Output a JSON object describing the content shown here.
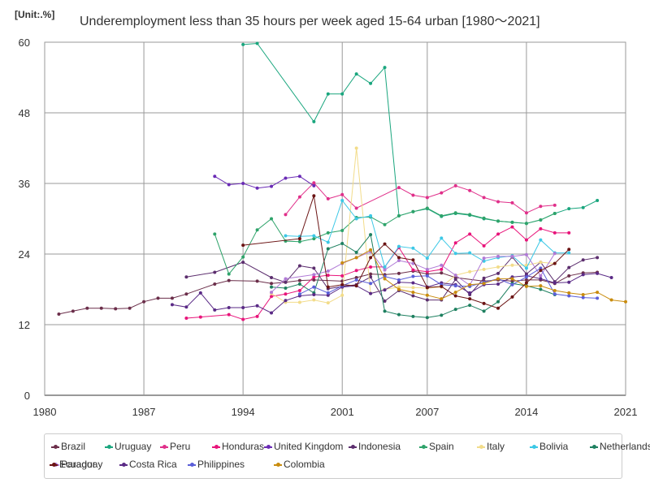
{
  "unit_label": "[Unit:.%]",
  "title": "Underemployment less than 35 hours per week aged 15-64 urban [1980～2021]",
  "chart_data": {
    "type": "line",
    "title": "Underemployment less than 35 hours per week aged 15-64 urban [1980～2021]",
    "xlabel": "",
    "ylabel": "",
    "xlim": [
      1980,
      2021
    ],
    "ylim": [
      0,
      60
    ],
    "xticks": [
      1980,
      1987,
      1994,
      2001,
      2007,
      2014,
      2021
    ],
    "yticks": [
      0,
      12,
      24,
      36,
      48,
      60
    ],
    "grid": true,
    "legend_position": "bottom",
    "series": [
      {
        "name": "Brazil",
        "color": "#6b2e4a",
        "x": [
          1981,
          1982,
          1983,
          1984,
          1985,
          1986,
          1987,
          1988,
          1989,
          1990,
          1992,
          1993,
          1995,
          1996,
          1997,
          1998,
          1999,
          2001,
          2002,
          2003,
          2004,
          2005,
          2006,
          2007,
          2008,
          2009,
          2011,
          2012,
          2013,
          2014,
          2015,
          2016,
          2017,
          2018,
          2019
        ],
        "y": [
          13.8,
          14.3,
          14.8,
          14.8,
          14.7,
          14.8,
          15.9,
          16.5,
          16.5,
          17.2,
          18.9,
          19.5,
          19.4,
          19.0,
          19.2,
          19.5,
          19.6,
          19.4,
          20.0,
          20.6,
          20.5,
          20.7,
          21.1,
          20.6,
          20.8,
          20.0,
          19.4,
          19.6,
          19.4,
          19.6,
          19.6,
          19.0,
          20.3,
          20.8,
          20.9
        ]
      },
      {
        "name": "Uruguay",
        "color": "#1aa67e",
        "x": [
          1994,
          1995,
          1999,
          2000,
          2001,
          2002,
          2003,
          2004,
          2005,
          2006,
          2007,
          2008,
          2009,
          2010,
          2011,
          2012,
          2013,
          2014,
          2015,
          2016,
          2017,
          2018,
          2019
        ],
        "y": [
          59.6,
          59.8,
          46.5,
          51.2,
          51.2,
          54.6,
          53.0,
          55.7,
          30.5,
          31.2,
          31.7,
          30.4,
          30.9,
          30.6,
          30.0,
          29.6,
          29.4,
          29.2,
          29.8,
          30.9,
          31.7,
          31.9,
          33.1
        ]
      },
      {
        "name": "Peru",
        "color": "#e02f8a",
        "x": [
          1997,
          1998,
          1999,
          2000,
          2001,
          2002,
          2005,
          2006,
          2007,
          2008,
          2009,
          2010,
          2011,
          2012,
          2013,
          2014,
          2015,
          2016
        ],
        "y": [
          30.7,
          33.7,
          36.1,
          33.4,
          34.1,
          31.8,
          35.3,
          34.0,
          33.6,
          34.4,
          35.6,
          34.8,
          33.6,
          32.9,
          32.7,
          31.0,
          32.1,
          32.3
        ]
      },
      {
        "name": "Honduras",
        "color": "#e8147a",
        "x": [
          1990,
          1991,
          1993,
          1994,
          1995,
          1996,
          1997,
          1998,
          1999,
          2000,
          2001,
          2002,
          2003,
          2004,
          2005,
          2006,
          2007,
          2008,
          2009,
          2010,
          2011,
          2012,
          2013,
          2014,
          2015,
          2016,
          2017
        ],
        "y": [
          13.1,
          13.3,
          13.7,
          12.9,
          13.4,
          16.8,
          17.2,
          17.8,
          20.1,
          20.4,
          20.3,
          21.2,
          21.8,
          21.8,
          25.1,
          21.3,
          21.0,
          21.4,
          25.9,
          27.4,
          25.4,
          27.4,
          28.6,
          26.4,
          28.3,
          27.6,
          27.6
        ]
      },
      {
        "name": "United Kingdom",
        "color": "#6a2bb5",
        "x": [
          1992,
          1993,
          1994,
          1995,
          1996,
          1997,
          1998,
          1999
        ],
        "y": [
          37.2,
          35.8,
          36.0,
          35.2,
          35.5,
          36.9,
          37.2,
          35.6
        ]
      },
      {
        "name": "Indonesia",
        "color": "#5c2e6e",
        "x": [
          1990,
          1992,
          1994,
          1996,
          1997,
          1998,
          1999,
          2000,
          2001,
          2002,
          2003,
          2004,
          2005,
          2006,
          2007,
          2008,
          2009,
          2010,
          2011,
          2012,
          2013,
          2014,
          2015,
          2016,
          2017,
          2018,
          2019
        ],
        "y": [
          20.1,
          20.9,
          22.6,
          20.0,
          19.2,
          22.0,
          21.6,
          18.1,
          18.5,
          18.8,
          20.1,
          16.0,
          17.8,
          16.9,
          16.2,
          16.2,
          19.7,
          17.1,
          19.9,
          20.7,
          23.5,
          20.6,
          22.6,
          19.3,
          21.7,
          23.0,
          23.4
        ]
      },
      {
        "name": "Spain",
        "color": "#2ea36a",
        "x": [
          1992,
          1993,
          1994,
          1995,
          1996,
          1997,
          1998,
          1999,
          2000,
          2001,
          2002,
          2003,
          2004,
          2005,
          2006,
          2007,
          2008,
          2009,
          2010,
          2011,
          2012,
          2013,
          2014,
          2015,
          2016
        ],
        "y": [
          27.4,
          20.6,
          23.5,
          28.1,
          30.0,
          26.2,
          26.1,
          26.6,
          27.6,
          28.0,
          30.2,
          30.3,
          29.0,
          30.5,
          31.2,
          31.8,
          30.5,
          31.0,
          30.7,
          30.1,
          29.6,
          29.4,
          29.2,
          29.8,
          30.9
        ]
      },
      {
        "name": "Italy",
        "color": "#f2dc8a",
        "x": [
          1996,
          1997,
          1998,
          1999,
          2000,
          2001,
          2002,
          2003,
          2004,
          2005,
          2006,
          2007,
          2008,
          2009,
          2010,
          2011,
          2012,
          2013,
          2014,
          2015,
          2016
        ],
        "y": [
          17.3,
          15.8,
          15.8,
          16.2,
          15.7,
          17.0,
          42.0,
          17.3,
          18.0,
          18.4,
          18.3,
          18.2,
          18.4,
          20.4,
          21.0,
          21.4,
          21.8,
          22.1,
          22.1,
          22.6,
          22.4
        ]
      },
      {
        "name": "Bolivia",
        "color": "#3cc8e6",
        "x": [
          1997,
          1998,
          1999,
          2000,
          2001,
          2002,
          2003,
          2004,
          2005,
          2006,
          2007,
          2008,
          2009,
          2010,
          2011,
          2012,
          2013,
          2014,
          2015,
          2016,
          2017
        ],
        "y": [
          27.1,
          27.0,
          27.1,
          26.0,
          33.1,
          30.0,
          30.5,
          21.8,
          25.3,
          25.0,
          23.3,
          26.7,
          24.1,
          24.2,
          22.8,
          23.4,
          23.7,
          21.6,
          26.4,
          24.2,
          24.2
        ]
      },
      {
        "name": "Netherlands",
        "color": "#1e8060",
        "x": [
          1996,
          1997,
          1998,
          1999,
          2000,
          2001,
          2002,
          2003,
          2004,
          2005,
          2006,
          2007,
          2008,
          2009,
          2010,
          2011,
          2012,
          2013,
          2014,
          2015,
          2016
        ],
        "y": [
          18.4,
          18.2,
          18.9,
          17.4,
          24.9,
          25.8,
          24.3,
          27.3,
          14.3,
          13.7,
          13.4,
          13.2,
          13.6,
          14.6,
          15.3,
          14.3,
          15.9,
          19.0,
          18.6,
          18.0,
          17.1
        ]
      },
      {
        "name": "Paraguay",
        "color": "#b07ad6",
        "x": [
          1996,
          1997,
          1999,
          2000,
          2001,
          2002,
          2003,
          2004,
          2005,
          2006,
          2007,
          2008,
          2009,
          2010,
          2011,
          2012,
          2013,
          2014,
          2015,
          2016
        ],
        "y": [
          17.5,
          19.8,
          20.5,
          21.1,
          22.4,
          23.4,
          24.4,
          21.3,
          22.9,
          22.4,
          21.4,
          22.1,
          20.4,
          18.7,
          23.3,
          23.6,
          23.6,
          23.9,
          20.3,
          24.1
        ]
      },
      {
        "name": "Costa Rica",
        "color": "#5a2a86",
        "x": [
          1989,
          1990,
          1991,
          1992,
          1993,
          1994,
          1995,
          1996,
          1997,
          1998,
          1999,
          2000,
          2001,
          2002,
          2003,
          2004,
          2005,
          2006,
          2007,
          2008,
          2009,
          2010,
          2011,
          2012,
          2013,
          2014,
          2015,
          2016,
          2017,
          2018,
          2019,
          2020
        ],
        "y": [
          15.4,
          15.0,
          17.4,
          14.5,
          14.9,
          14.9,
          15.2,
          14.0,
          16.1,
          16.9,
          17.1,
          17.0,
          18.4,
          18.6,
          17.3,
          17.9,
          19.2,
          19.1,
          18.4,
          19.1,
          18.8,
          17.4,
          18.8,
          18.9,
          20.1,
          20.3,
          19.8,
          19.1,
          19.2,
          20.5,
          20.7,
          20.0
        ]
      },
      {
        "name": "Philippines",
        "color": "#5a5ed8",
        "x": [
          1998,
          1999,
          2000,
          2001,
          2002,
          2003,
          2004,
          2005,
          2006,
          2007,
          2008,
          2009,
          2010,
          2011,
          2012,
          2013,
          2014,
          2015,
          2016,
          2017,
          2018,
          2019
        ],
        "y": [
          17.2,
          18.4,
          17.4,
          18.6,
          19.6,
          19.0,
          20.2,
          19.6,
          20.2,
          20.3,
          18.8,
          18.6,
          18.5,
          19.2,
          19.8,
          18.8,
          20.1,
          21.6,
          17.2,
          16.9,
          16.6,
          16.5
        ]
      },
      {
        "name": "Colombia",
        "color": "#c98c0e",
        "x": [
          2001,
          2002,
          2003,
          2004,
          2005,
          2006,
          2007,
          2008,
          2009,
          2010,
          2011,
          2012,
          2013,
          2014,
          2015,
          2016,
          2017,
          2018,
          2019,
          2020,
          2021
        ],
        "y": [
          22.5,
          23.4,
          24.7,
          19.8,
          18.0,
          17.5,
          17.0,
          16.4,
          17.5,
          18.8,
          19.0,
          19.8,
          19.8,
          18.5,
          18.6,
          17.8,
          17.4,
          17.1,
          17.5,
          16.2,
          15.9
        ]
      },
      {
        "name": "Ecuador",
        "color": "#6b1414",
        "x": [
          1994,
          1998,
          1999,
          2000,
          2001,
          2002,
          2003,
          2004,
          2005,
          2006,
          2007,
          2008,
          2009,
          2010,
          2011,
          2012,
          2013,
          2014,
          2015,
          2016,
          2017
        ],
        "y": [
          25.5,
          26.6,
          33.9,
          18.4,
          18.8,
          18.6,
          23.4,
          25.7,
          23.4,
          23.0,
          18.3,
          18.5,
          16.9,
          16.4,
          15.6,
          14.8,
          16.7,
          19.1,
          21.2,
          22.4,
          24.8
        ]
      }
    ]
  }
}
